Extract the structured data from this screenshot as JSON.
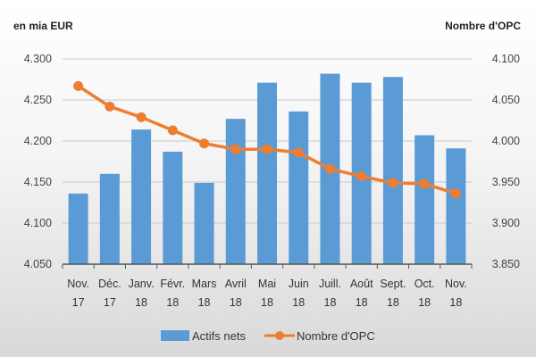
{
  "chart_data": {
    "type": "bar+line",
    "categories": [
      [
        "Nov.",
        "17"
      ],
      [
        "Déc.",
        "17"
      ],
      [
        "Janv.",
        "18"
      ],
      [
        "Févr.",
        "18"
      ],
      [
        "Mars",
        "18"
      ],
      [
        "Avril",
        "18"
      ],
      [
        "Mai",
        "18"
      ],
      [
        "Juin",
        "18"
      ],
      [
        "Juill.",
        "18"
      ],
      [
        "Août",
        "18"
      ],
      [
        "Sept.",
        "18"
      ],
      [
        "Oct.",
        "18"
      ],
      [
        "Nov.",
        "18"
      ]
    ],
    "left_axis": {
      "label": "en mia EUR",
      "ylim": [
        4.05,
        4.3
      ],
      "ticks": [
        "4.050",
        "4.100",
        "4.150",
        "4.200",
        "4.250",
        "4.300"
      ],
      "tick_values": [
        4.05,
        4.1,
        4.15,
        4.2,
        4.25,
        4.3
      ]
    },
    "right_axis": {
      "label": "Nombre d'OPC",
      "ylim": [
        3850,
        4100
      ],
      "ticks": [
        "3.850",
        "3.900",
        "3.950",
        "4.000",
        "4.050",
        "4.100"
      ],
      "tick_values": [
        3850,
        3900,
        3950,
        4000,
        4050,
        4100
      ]
    },
    "series": [
      {
        "name": "Actifs nets",
        "type": "bar",
        "axis": "left",
        "color": "#5b9bd5",
        "values": [
          4.136,
          4.16,
          4.214,
          4.187,
          4.149,
          4.227,
          4.271,
          4.236,
          4.282,
          4.271,
          4.278,
          4.207,
          4.191
        ]
      },
      {
        "name": "Nombre d'OPC",
        "type": "line",
        "axis": "right",
        "color": "#ed7d31",
        "values": [
          4067,
          4042,
          4029,
          4013,
          3997,
          3990,
          3990,
          3986,
          3966,
          3957,
          3949,
          3948,
          3936
        ]
      }
    ],
    "grid": true,
    "legend": "bottom"
  }
}
